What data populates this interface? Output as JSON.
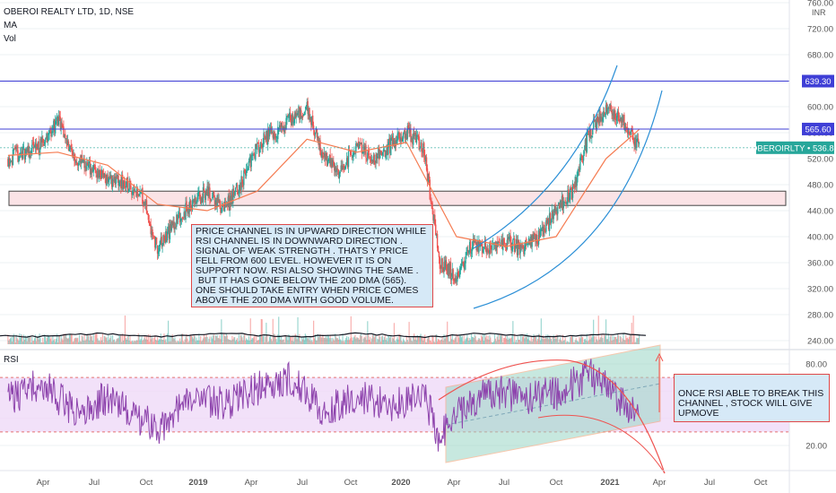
{
  "header": {
    "title": "OBEROI REALTY LTD, 1D, NSE",
    "indicator_ma": "MA",
    "indicator_vol": "Vol",
    "currency": "INR"
  },
  "rsi_label": "RSI",
  "notes": {
    "main": "PRICE CHANNEL IS IN UPWARD DIRECTION WHILE RSI CHANNEL IS IN DOWNWARD DIRECTION . SIGNAL OF WEAK STRENGTH . THATS Y PRICE FELL FROM 600 LEVEL. HOWEVER IT IS ON SUPPORT NOW. RSI ALSO SHOWING THE SAME .\n BUT IT HAS GONE BELOW THE 200 DMA (565). ONE SHOULD TAKE ENTRY WHEN PRICE COMES ABOVE THE 200 DMA WITH GOOD VOLUME.",
    "rsi": "ONCE RSI ABLE TO BREAK THIS CHANNEL , STOCK WILL GIVE UPMOVE"
  },
  "colors": {
    "up": "#26a69a",
    "down": "#ef5350",
    "ma": "#f57c52",
    "level_line": "#3f3fd6",
    "rsi_line": "#8e44ad",
    "channel": "#2b8fd6",
    "rsi_band": "#efd9f7",
    "last_price_bg": "#26a69a",
    "level_tag_bg": "#3f3fd6"
  },
  "chart_data": [
    {
      "type": "candlestick",
      "title": "OBEROI REALTY LTD, 1D, NSE",
      "symbol": "OBEROIRLTY",
      "last_price": 536.8,
      "ylim": [
        240,
        760
      ],
      "y_ticks": [
        240,
        280,
        320,
        360,
        400,
        440,
        480,
        520,
        560,
        600,
        640,
        680,
        720,
        760
      ],
      "y_tick_labels": [
        "240.00",
        "280.00",
        "320.00",
        "360.00",
        "400.00",
        "440.00",
        "480.00",
        "520.00",
        "560.00",
        "600.00",
        "640.00",
        "680.00",
        "720.00",
        "760.00"
      ],
      "x_tick_labels": [
        "Apr",
        "Jul",
        "Oct",
        "2019",
        "Apr",
        "Jul",
        "Oct",
        "2020",
        "Apr",
        "Jul",
        "Oct",
        "2021",
        "Apr",
        "Jul",
        "Oct"
      ],
      "horizontal_levels": [
        639.3,
        565.6
      ],
      "level_labels": [
        "639.30",
        "565.60"
      ],
      "last_price_label": "OBEROIRLTY • 536.80",
      "support_zone": [
        448,
        470
      ],
      "close_path": {
        "time": [
          "2018-01",
          "2018-03",
          "2018-04",
          "2018-05",
          "2018-07",
          "2018-09",
          "2018-10",
          "2018-11",
          "2018-12",
          "2019-01",
          "2019-02",
          "2019-03",
          "2019-04",
          "2019-05",
          "2019-07",
          "2019-08",
          "2019-09",
          "2019-10",
          "2019-11",
          "2019-12",
          "2020-01",
          "2020-02",
          "2020-03",
          "2020-04",
          "2020-05",
          "2020-06",
          "2020-07",
          "2020-08",
          "2020-09",
          "2020-10",
          "2020-11",
          "2020-12",
          "2021-01",
          "2021-02",
          "2021-03"
        ],
        "close": [
          520,
          540,
          580,
          520,
          490,
          470,
          380,
          420,
          450,
          470,
          440,
          480,
          540,
          560,
          600,
          520,
          500,
          540,
          520,
          540,
          560,
          540,
          360,
          340,
          390,
          380,
          390,
          380,
          400,
          440,
          470,
          560,
          600,
          580,
          537
        ]
      },
      "ma_200": {
        "time": [
          "2018-01",
          "2018-04",
          "2018-07",
          "2018-10",
          "2019-01",
          "2019-04",
          "2019-07",
          "2019-10",
          "2020-01",
          "2020-04",
          "2020-07",
          "2020-10",
          "2021-01",
          "2021-03"
        ],
        "value": [
          525,
          530,
          510,
          450,
          440,
          470,
          550,
          530,
          545,
          400,
          385,
          400,
          520,
          565
        ]
      }
    },
    {
      "type": "line",
      "title": "RSI",
      "ylim": [
        5,
        95
      ],
      "y_ticks": [
        20,
        40,
        60,
        80
      ],
      "y_tick_labels": [
        "20.00",
        "40.00",
        "60.00",
        "80.00"
      ],
      "band": [
        30,
        70
      ],
      "series": [
        {
          "time": [
            "2018-01",
            "2018-03",
            "2018-05",
            "2018-07",
            "2018-09",
            "2018-10",
            "2018-12",
            "2019-02",
            "2019-04",
            "2019-06",
            "2019-08",
            "2019-10",
            "2019-12",
            "2020-02",
            "2020-03",
            "2020-04",
            "2020-06",
            "2020-08",
            "2020-10",
            "2020-12",
            "2021-01",
            "2021-02",
            "2021-03"
          ],
          "value": [
            55,
            65,
            45,
            55,
            40,
            32,
            55,
            50,
            62,
            70,
            45,
            55,
            50,
            58,
            25,
            42,
            60,
            55,
            58,
            72,
            62,
            52,
            42
          ]
        }
      ]
    }
  ]
}
